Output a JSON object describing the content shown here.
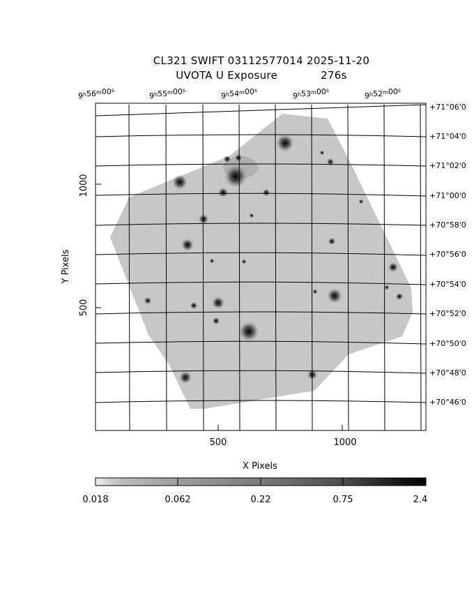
{
  "title": {
    "line1": "CL321 SWIFT 03112577014 2025-11-20",
    "line2_label": "UVOTA U Exposure",
    "line2_time": "276s"
  },
  "axes": {
    "x_label": "X Pixels",
    "y_label": "Y Pixels",
    "x_ticks": [
      "500",
      "1000"
    ],
    "y_ticks": [
      "500",
      "1000"
    ]
  },
  "ra_ticks": [
    {
      "h": "9",
      "m": "56",
      "s": "00"
    },
    {
      "h": "9",
      "m": "55",
      "s": "00"
    },
    {
      "h": "9",
      "m": "54",
      "s": "00"
    },
    {
      "h": "9",
      "m": "53",
      "s": "00"
    },
    {
      "h": "9",
      "m": "52",
      "s": "00"
    }
  ],
  "dec_ticks": [
    "+71°06'0",
    "+71°04'0",
    "+71°02'0",
    "+71°00'0",
    "+70°58'0",
    "+70°56'0",
    "+70°54'0",
    "+70°52'0",
    "+70°50'0",
    "+70°48'0",
    "+70°46'0"
  ],
  "colorbar": {
    "labels": [
      "0.018",
      "0.062",
      "0.22",
      "0.75",
      "2.4"
    ]
  },
  "colors": {
    "background": "#ffffff",
    "sky": "#b4b4b4",
    "grid": "#000000"
  }
}
